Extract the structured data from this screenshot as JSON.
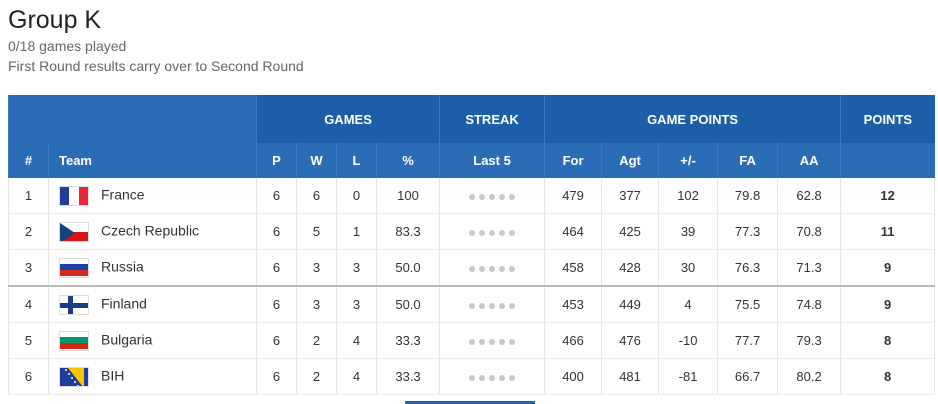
{
  "group": {
    "title": "Group K",
    "games_played": "0/18 games played",
    "note": "First Round results carry over to Second Round"
  },
  "headers": {
    "games": "GAMES",
    "streak": "STREAK",
    "game_points": "GAME POINTS",
    "points": "POINTS",
    "num": "#",
    "team": "Team",
    "p": "P",
    "w": "W",
    "l": "L",
    "pct": "%",
    "last5": "Last 5",
    "for": "For",
    "agt": "Agt",
    "diff": "+/-",
    "fa": "FA",
    "aa": "AA"
  },
  "rows": [
    {
      "rank": "1",
      "team": "France",
      "flag": "france-flag-icon",
      "p": "6",
      "w": "6",
      "l": "0",
      "pct": "100",
      "for": "479",
      "agt": "377",
      "diff": "102",
      "fa": "79.8",
      "aa": "62.8",
      "points": "12"
    },
    {
      "rank": "2",
      "team": "Czech Republic",
      "flag": "czech-flag-icon",
      "p": "6",
      "w": "5",
      "l": "1",
      "pct": "83.3",
      "for": "464",
      "agt": "425",
      "diff": "39",
      "fa": "77.3",
      "aa": "70.8",
      "points": "11"
    },
    {
      "rank": "3",
      "team": "Russia",
      "flag": "russia-flag-icon",
      "p": "6",
      "w": "3",
      "l": "3",
      "pct": "50.0",
      "for": "458",
      "agt": "428",
      "diff": "30",
      "fa": "76.3",
      "aa": "71.3",
      "points": "9"
    },
    {
      "rank": "4",
      "team": "Finland",
      "flag": "finland-flag-icon",
      "p": "6",
      "w": "3",
      "l": "3",
      "pct": "50.0",
      "for": "453",
      "agt": "449",
      "diff": "4",
      "fa": "75.5",
      "aa": "74.8",
      "points": "9"
    },
    {
      "rank": "5",
      "team": "Bulgaria",
      "flag": "bulgaria-flag-icon",
      "p": "6",
      "w": "2",
      "l": "4",
      "pct": "33.3",
      "for": "466",
      "agt": "476",
      "diff": "-10",
      "fa": "77.7",
      "aa": "79.3",
      "points": "8"
    },
    {
      "rank": "6",
      "team": "BIH",
      "flag": "bih-flag-icon",
      "p": "6",
      "w": "2",
      "l": "4",
      "pct": "33.3",
      "for": "400",
      "agt": "481",
      "diff": "-81",
      "fa": "66.7",
      "aa": "80.2",
      "points": "8"
    }
  ],
  "colors": {
    "header_bg": "#2166b0",
    "streak_dot": "#c9c9c9"
  }
}
